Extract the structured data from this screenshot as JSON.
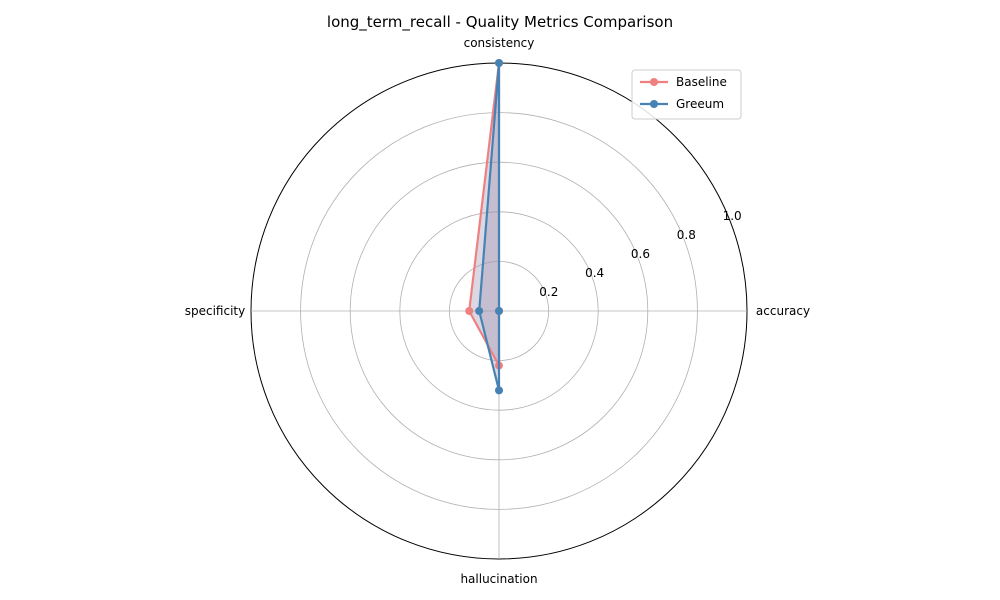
{
  "chart_data": {
    "type": "radar",
    "title": "long_term_recall - Quality Metrics Comparison",
    "axes": [
      "accuracy",
      "consistency",
      "specificity",
      "hallucination"
    ],
    "rlim": [
      0,
      1.0
    ],
    "rticks": [
      "0.2",
      "0.4",
      "0.6",
      "0.8",
      "1.0"
    ],
    "rtick_values": [
      0.2,
      0.4,
      0.6,
      0.8,
      1.0
    ],
    "grid": true,
    "legend_position": "top-right",
    "series": [
      {
        "name": "Baseline",
        "values": [
          0.0,
          1.0,
          0.12,
          0.22
        ],
        "color": "#f08080"
      },
      {
        "name": "Greeum",
        "values": [
          0.0,
          1.0,
          0.08,
          0.32
        ],
        "color": "#4682b4"
      }
    ],
    "fill_color": "#9c8fb0"
  }
}
